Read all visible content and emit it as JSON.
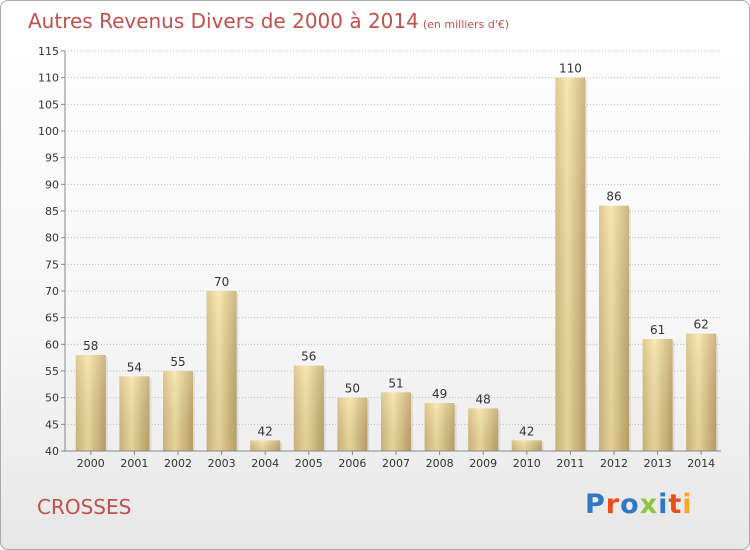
{
  "title": "Autres Revenus Divers de 2000 à 2014",
  "subtitle": "(en milliers d'€)",
  "place": "CROSSES",
  "logo": {
    "text": "Proxiti",
    "colors": [
      "#2f78c4",
      "#e94e1b",
      "#2f78c4",
      "#8cc63f",
      "#2f78c4",
      "#e94e1b",
      "#f5a623"
    ]
  },
  "colors": {
    "title": "#c0504d",
    "bar_light": "#f5df9f",
    "bar_dark": "#c4a86c",
    "grid": "#bbbbbb"
  },
  "chart_data": {
    "type": "bar",
    "title": "Autres Revenus Divers de 2000 à 2014",
    "subtitle": "(en milliers d'€)",
    "categories": [
      "2000",
      "2001",
      "2002",
      "2003",
      "2004",
      "2005",
      "2006",
      "2007",
      "2008",
      "2009",
      "2010",
      "2011",
      "2012",
      "2013",
      "2014"
    ],
    "values": [
      58,
      54,
      55,
      70,
      42,
      56,
      50,
      51,
      49,
      48,
      42,
      110,
      86,
      61,
      62
    ],
    "ylim": [
      40,
      115
    ],
    "yticks": [
      40,
      45,
      50,
      55,
      60,
      65,
      70,
      75,
      80,
      85,
      90,
      95,
      100,
      105,
      110,
      115
    ],
    "grid": true,
    "grid_axis": "y",
    "legend": "none"
  }
}
